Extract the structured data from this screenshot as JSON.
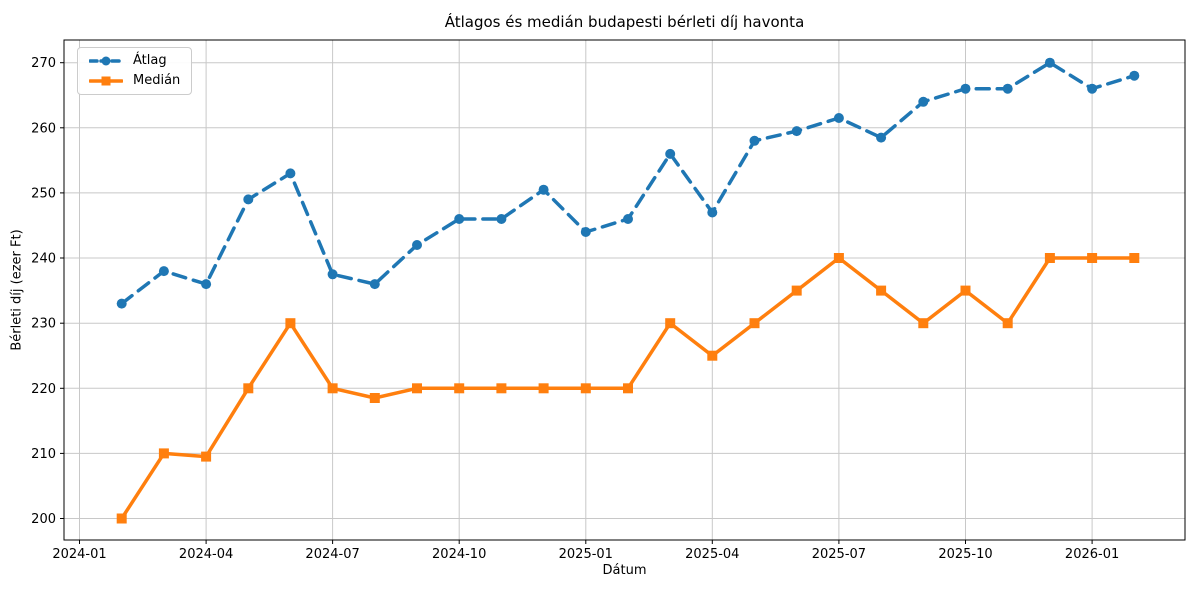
{
  "chart_data": {
    "type": "line",
    "title": "Átlagos és medián budapesti bérleti díj havonta",
    "xlabel": "Dátum",
    "ylabel": "Bérleti díj (ezer Ft)",
    "categories": [
      "2024-02",
      "2024-03",
      "2024-04",
      "2024-05",
      "2024-06",
      "2024-07",
      "2024-08",
      "2024-09",
      "2024-10",
      "2024-11",
      "2024-12",
      "2025-01",
      "2025-02",
      "2025-03",
      "2025-04",
      "2025-05",
      "2025-06",
      "2025-07",
      "2025-08",
      "2025-09",
      "2025-10",
      "2025-11",
      "2025-12",
      "2026-01",
      "2026-02"
    ],
    "series": [
      {
        "name": "Átlag",
        "color": "#1f77b4",
        "line_style": "dashed",
        "marker": "circle",
        "values": [
          233,
          238,
          236,
          249,
          253,
          237.5,
          236,
          242,
          246,
          246,
          250.5,
          244,
          246,
          256,
          247,
          258,
          259.5,
          261.5,
          258.5,
          264,
          266,
          266,
          270,
          266,
          268
        ]
      },
      {
        "name": "Medián",
        "color": "#ff7f0e",
        "line_style": "solid",
        "marker": "square",
        "values": [
          200,
          210,
          209.5,
          220,
          230,
          220,
          218.5,
          220,
          220,
          220,
          220,
          220,
          220,
          230,
          225,
          230,
          235,
          240,
          235,
          230,
          235,
          230,
          240,
          240,
          240
        ]
      }
    ],
    "x_ticks": [
      "2024-01",
      "2024-04",
      "2024-07",
      "2024-10",
      "2025-01",
      "2025-04",
      "2025-07",
      "2025-10",
      "2026-01"
    ],
    "y_ticks": [
      200,
      210,
      220,
      230,
      240,
      250,
      260,
      270
    ],
    "ylim": [
      196.5,
      273.5
    ],
    "grid": true,
    "legend_position": "upper-left"
  }
}
